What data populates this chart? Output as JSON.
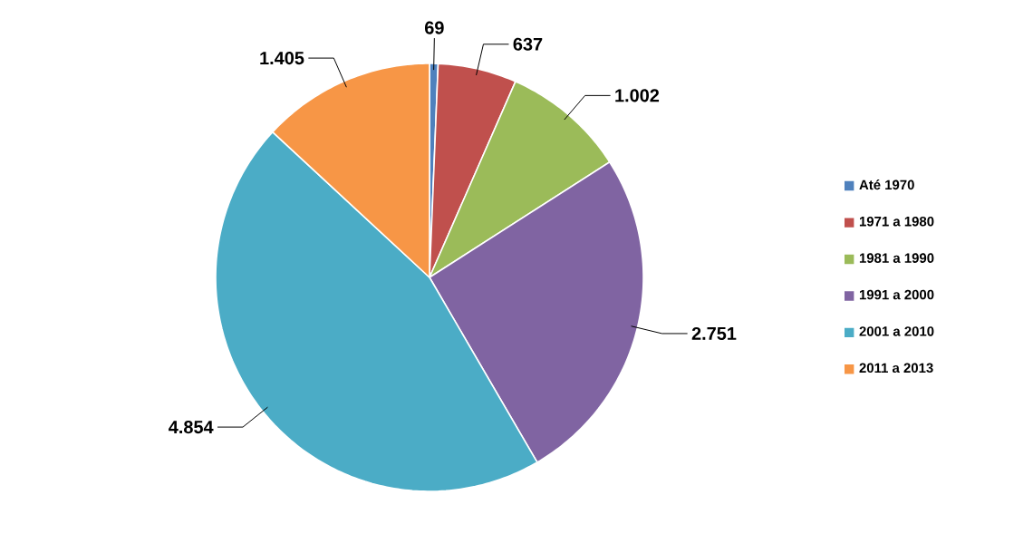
{
  "chart_data": {
    "type": "pie",
    "categories": [
      "Até 1970",
      "1971 a 1980",
      "1981 a 1990",
      "1991 a 2000",
      "2001 a 2010",
      "2011 a 2013"
    ],
    "values": [
      69,
      637,
      1002,
      2751,
      4854,
      1405
    ],
    "value_labels": [
      "69",
      "637",
      "1.002",
      "2.751",
      "4.854",
      "1.405"
    ],
    "colors": [
      "#4f81bd",
      "#c0504d",
      "#9bbb59",
      "#8064a2",
      "#4bacc6",
      "#f79646"
    ],
    "legend": "right"
  }
}
